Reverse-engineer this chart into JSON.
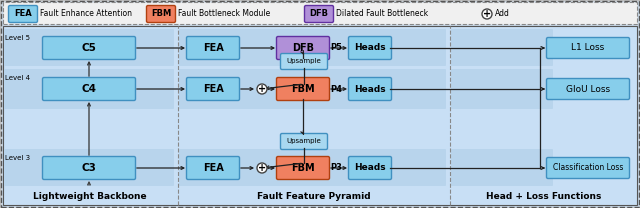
{
  "fig_width": 6.4,
  "fig_height": 2.08,
  "dpi": 100,
  "colors": {
    "fea": "#87ceeb",
    "fbm": "#f08060",
    "dfb": "#b090d8",
    "heads": "#87ceeb",
    "cn": "#87ceeb",
    "loss": "#87ceeb",
    "upsample": "#a8d8f0"
  },
  "border_colors": {
    "fea": "#4090c0",
    "fbm": "#b04010",
    "dfb": "#6030a0",
    "heads": "#4090c0",
    "cn": "#4090c0",
    "loss": "#4090c0",
    "upsample": "#4090c0"
  },
  "bg_diagram": "#c8dff5",
  "bg_level": "#d8eaf8",
  "bg_legend": "#f8f8f8",
  "section_labels": [
    "Lightweight Backbone",
    "Fault Feature Pyramid",
    "Head + Loss Functions"
  ],
  "level_labels": [
    "Level 5",
    "Level 4",
    "Level 3"
  ]
}
